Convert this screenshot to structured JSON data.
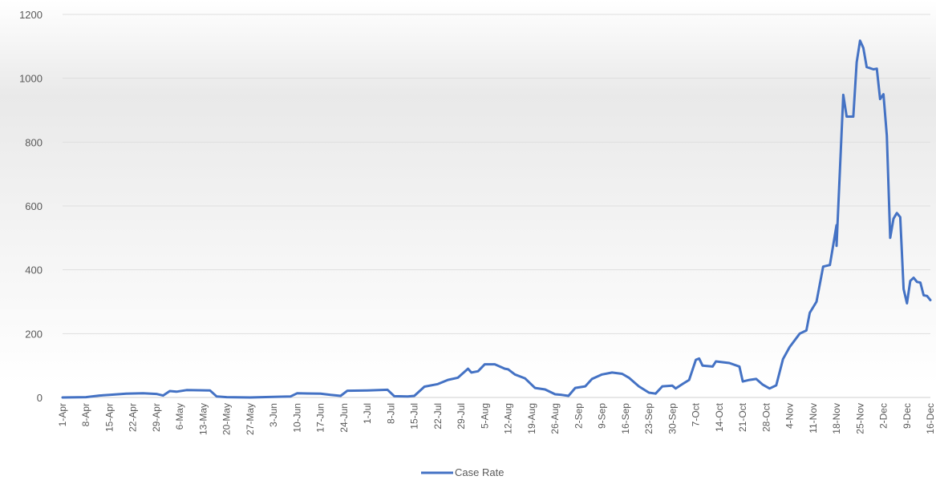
{
  "chart_data": {
    "type": "line",
    "title": "",
    "xlabel": "",
    "ylabel": "",
    "ylim": [
      0,
      1200
    ],
    "yticks": [
      0,
      200,
      400,
      600,
      800,
      1000,
      1200
    ],
    "grid": true,
    "legend_position": "bottom",
    "x_start": "1-Apr",
    "x_end": "16-Dec",
    "xtick_labels": [
      "1-Apr",
      "8-Apr",
      "15-Apr",
      "22-Apr",
      "29-Apr",
      "6-May",
      "13-May",
      "20-May",
      "27-May",
      "3-Jun",
      "10-Jun",
      "17-Jun",
      "24-Jun",
      "1-Jul",
      "8-Jul",
      "15-Jul",
      "22-Jul",
      "29-Jul",
      "5-Aug",
      "12-Aug",
      "19-Aug",
      "26-Aug",
      "2-Sep",
      "9-Sep",
      "16-Sep",
      "23-Sep",
      "30-Sep",
      "7-Oct",
      "14-Oct",
      "21-Oct",
      "28-Oct",
      "4-Nov",
      "11-Nov",
      "18-Nov",
      "25-Nov",
      "2-Dec",
      "9-Dec",
      "16-Dec"
    ],
    "series": [
      {
        "name": "Case Rate",
        "color": "#4472c4",
        "points": [
          [
            "1-Apr",
            0
          ],
          [
            "8-Apr",
            1
          ],
          [
            "12-Apr",
            6
          ],
          [
            "15-Apr",
            8
          ],
          [
            "20-Apr",
            12
          ],
          [
            "25-Apr",
            13
          ],
          [
            "29-Apr",
            11
          ],
          [
            "1-May",
            6
          ],
          [
            "3-May",
            20
          ],
          [
            "5-May",
            18
          ],
          [
            "8-May",
            23
          ],
          [
            "15-May",
            22
          ],
          [
            "17-May",
            3
          ],
          [
            "20-May",
            1
          ],
          [
            "27-May",
            0
          ],
          [
            "3-Jun",
            2
          ],
          [
            "8-Jun",
            3
          ],
          [
            "10-Jun",
            13
          ],
          [
            "17-Jun",
            12
          ],
          [
            "20-Jun",
            8
          ],
          [
            "23-Jun",
            5
          ],
          [
            "25-Jun",
            21
          ],
          [
            "1-Jul",
            22
          ],
          [
            "7-Jul",
            24
          ],
          [
            "9-Jul",
            4
          ],
          [
            "13-Jul",
            3
          ],
          [
            "15-Jul",
            5
          ],
          [
            "18-Jul",
            34
          ],
          [
            "22-Jul",
            42
          ],
          [
            "25-Jul",
            55
          ],
          [
            "28-Jul",
            62
          ],
          [
            "31-Jul",
            90
          ],
          [
            "1-Aug",
            78
          ],
          [
            "3-Aug",
            82
          ],
          [
            "5-Aug",
            104
          ],
          [
            "8-Aug",
            104
          ],
          [
            "11-Aug",
            90
          ],
          [
            "12-Aug",
            88
          ],
          [
            "14-Aug",
            72
          ],
          [
            "17-Aug",
            60
          ],
          [
            "20-Aug",
            30
          ],
          [
            "23-Aug",
            25
          ],
          [
            "26-Aug",
            10
          ],
          [
            "28-Aug",
            8
          ],
          [
            "30-Aug",
            5
          ],
          [
            "1-Sep",
            30
          ],
          [
            "4-Sep",
            35
          ],
          [
            "6-Sep",
            58
          ],
          [
            "9-Sep",
            72
          ],
          [
            "12-Sep",
            78
          ],
          [
            "15-Sep",
            74
          ],
          [
            "17-Sep",
            62
          ],
          [
            "20-Sep",
            35
          ],
          [
            "23-Sep",
            15
          ],
          [
            "25-Sep",
            12
          ],
          [
            "27-Sep",
            35
          ],
          [
            "30-Sep",
            37
          ],
          [
            "1-Oct",
            28
          ],
          [
            "3-Oct",
            42
          ],
          [
            "5-Oct",
            55
          ],
          [
            "7-Oct",
            118
          ],
          [
            "8-Oct",
            122
          ],
          [
            "9-Oct",
            100
          ],
          [
            "12-Oct",
            97
          ],
          [
            "13-Oct",
            113
          ],
          [
            "17-Oct",
            108
          ],
          [
            "20-Oct",
            97
          ],
          [
            "21-Oct",
            50
          ],
          [
            "23-Oct",
            55
          ],
          [
            "25-Oct",
            58
          ],
          [
            "27-Oct",
            40
          ],
          [
            "29-Oct",
            28
          ],
          [
            "31-Oct",
            38
          ],
          [
            "2-Nov",
            120
          ],
          [
            "4-Nov",
            158
          ],
          [
            "7-Nov",
            200
          ],
          [
            "9-Nov",
            210
          ],
          [
            "10-Nov",
            265
          ],
          [
            "12-Nov",
            300
          ],
          [
            "14-Nov",
            410
          ],
          [
            "16-Nov",
            415
          ],
          [
            "18-Nov",
            540
          ],
          [
            "18-Nov",
            475
          ],
          [
            "20-Nov",
            948
          ],
          [
            "21-Nov",
            880
          ],
          [
            "23-Nov",
            880
          ],
          [
            "24-Nov",
            1050
          ],
          [
            "25-Nov",
            1118
          ],
          [
            "26-Nov",
            1095
          ],
          [
            "27-Nov",
            1035
          ],
          [
            "29-Nov",
            1028
          ],
          [
            "30-Nov",
            1030
          ],
          [
            "1-Dec",
            935
          ],
          [
            "2-Dec",
            950
          ],
          [
            "3-Dec",
            820
          ],
          [
            "4-Dec",
            500
          ],
          [
            "5-Dec",
            560
          ],
          [
            "6-Dec",
            578
          ],
          [
            "7-Dec",
            565
          ],
          [
            "8-Dec",
            340
          ],
          [
            "9-Dec",
            295
          ],
          [
            "10-Dec",
            365
          ],
          [
            "11-Dec",
            375
          ],
          [
            "12-Dec",
            362
          ],
          [
            "13-Dec",
            360
          ],
          [
            "14-Dec",
            320
          ],
          [
            "15-Dec",
            318
          ],
          [
            "16-Dec",
            305
          ]
        ]
      }
    ]
  }
}
